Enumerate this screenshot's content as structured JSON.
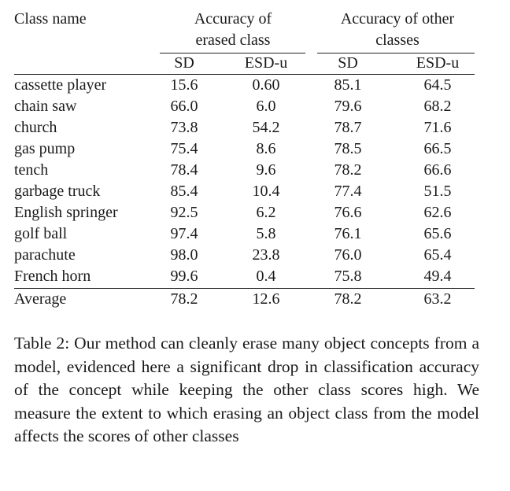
{
  "table": {
    "headers": {
      "class_name": "Class name",
      "group_erased": [
        "Accuracy of",
        "erased class"
      ],
      "group_other": [
        "Accuracy of other",
        "classes"
      ],
      "sub_sd": "SD",
      "sub_esd": "ESD-u"
    },
    "rows": [
      {
        "name": "cassette player",
        "erased_sd": "15.6",
        "erased_esd": "0.60",
        "other_sd": "85.1",
        "other_esd": "64.5"
      },
      {
        "name": "chain saw",
        "erased_sd": "66.0",
        "erased_esd": "6.0",
        "other_sd": "79.6",
        "other_esd": "68.2"
      },
      {
        "name": "church",
        "erased_sd": "73.8",
        "erased_esd": "54.2",
        "other_sd": "78.7",
        "other_esd": "71.6"
      },
      {
        "name": "gas pump",
        "erased_sd": "75.4",
        "erased_esd": "8.6",
        "other_sd": "78.5",
        "other_esd": "66.5"
      },
      {
        "name": "tench",
        "erased_sd": "78.4",
        "erased_esd": "9.6",
        "other_sd": "78.2",
        "other_esd": "66.6"
      },
      {
        "name": "garbage truck",
        "erased_sd": "85.4",
        "erased_esd": "10.4",
        "other_sd": "77.4",
        "other_esd": "51.5"
      },
      {
        "name": "English springer",
        "erased_sd": "92.5",
        "erased_esd": "6.2",
        "other_sd": "76.6",
        "other_esd": "62.6"
      },
      {
        "name": "golf ball",
        "erased_sd": "97.4",
        "erased_esd": "5.8",
        "other_sd": "76.1",
        "other_esd": "65.6"
      },
      {
        "name": "parachute",
        "erased_sd": "98.0",
        "erased_esd": "23.8",
        "other_sd": "76.0",
        "other_esd": "65.4"
      },
      {
        "name": "French horn",
        "erased_sd": "99.6",
        "erased_esd": "0.4",
        "other_sd": "75.8",
        "other_esd": "49.4"
      }
    ],
    "average": {
      "name": "Average",
      "erased_sd": "78.2",
      "erased_esd": "12.6",
      "other_sd": "78.2",
      "other_esd": "63.2"
    }
  },
  "caption": "Table 2: Our method can cleanly erase many object concepts from a model, evidenced here a significant drop in classification accuracy of the concept while keeping the other class scores high. We measure the extent to which erasing an object class from the model affects the scores of other classes"
}
